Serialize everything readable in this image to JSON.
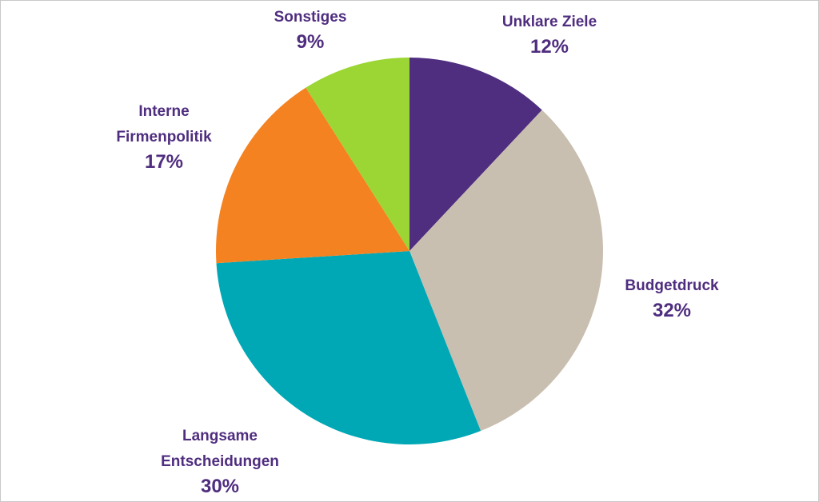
{
  "chart_data": {
    "type": "pie",
    "categories": [
      "Unklare Ziele",
      "Budgetdruck",
      "Langsame Entscheidungen",
      "Interne Firmenpolitik",
      "Sonstiges"
    ],
    "values": [
      12,
      32,
      30,
      17,
      9
    ],
    "value_labels": [
      "12%",
      "32%",
      "30%",
      "17%",
      "9%"
    ],
    "colors": [
      "#4f2d7f",
      "#c9bfb0",
      "#00a8b5",
      "#f58220",
      "#9bd634"
    ]
  }
}
